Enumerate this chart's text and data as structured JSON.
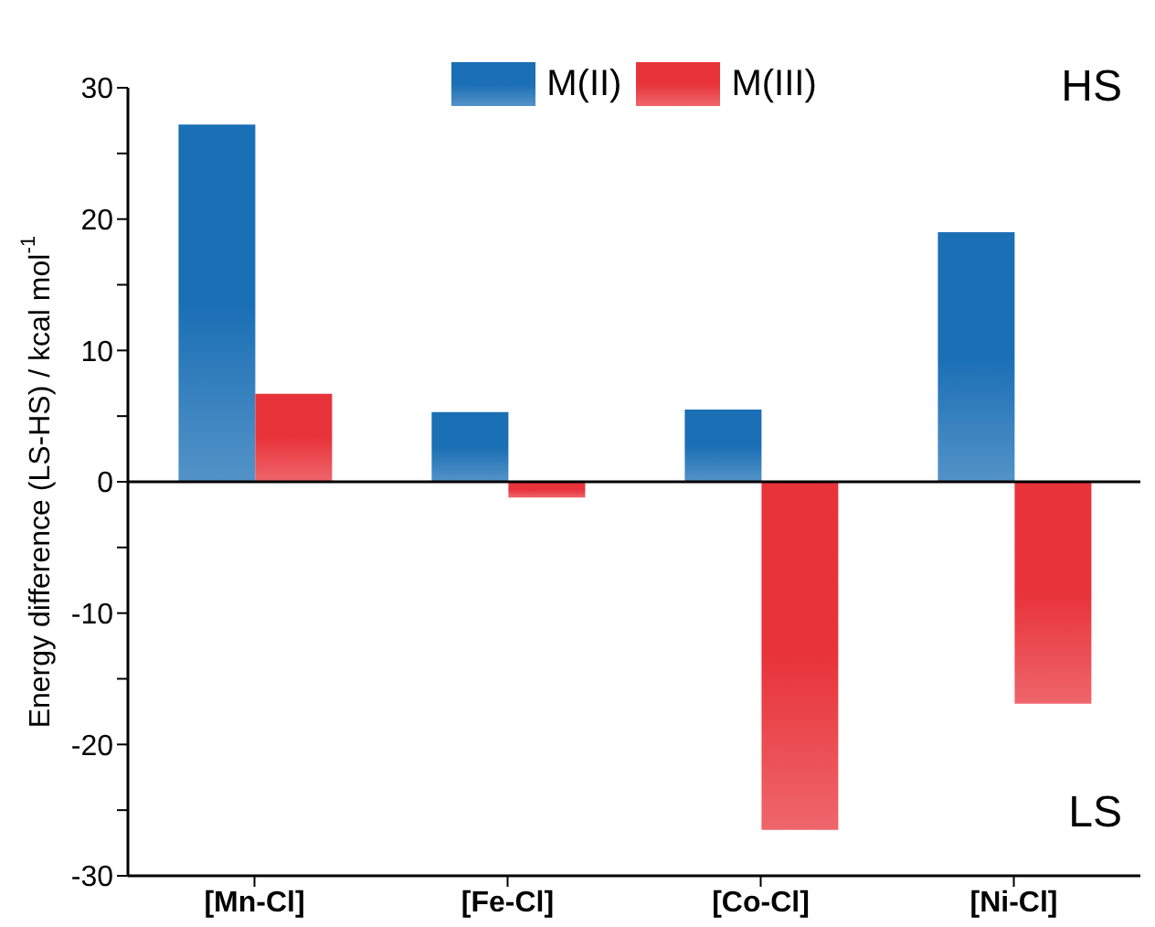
{
  "chart_data": {
    "type": "bar",
    "ylabel": "Energy difference (LS-HS) / kcal mol$^{-1}$",
    "categories": [
      "[Mn-Cl]",
      "[Fe-Cl]",
      "[Co-Cl]",
      "[Ni-Cl]"
    ],
    "series": [
      {
        "name": "M(II)",
        "color": "#1a6fb5",
        "values": [
          27.2,
          5.3,
          5.5,
          19.0
        ]
      },
      {
        "name": "M(III)",
        "color": "#e8333a",
        "values": [
          6.7,
          -1.2,
          -26.5,
          -16.9
        ]
      }
    ],
    "ylim": [
      -30,
      30
    ],
    "yticks": [
      -30,
      {
        "value": -25,
        "label": null
      },
      -20,
      {
        "value": -15,
        "label": null
      },
      -10,
      {
        "value": -5,
        "label": null
      },
      0,
      {
        "value": 5,
        "label": null
      },
      10,
      {
        "value": 15,
        "label": null
      },
      20,
      {
        "value": 25,
        "label": null
      },
      30
    ],
    "ref_lines": [
      {
        "axis": "y",
        "value": 0,
        "color": "#000000"
      }
    ],
    "annotations": [
      "HS",
      "LS"
    ],
    "legend": "top",
    "grid": false
  }
}
